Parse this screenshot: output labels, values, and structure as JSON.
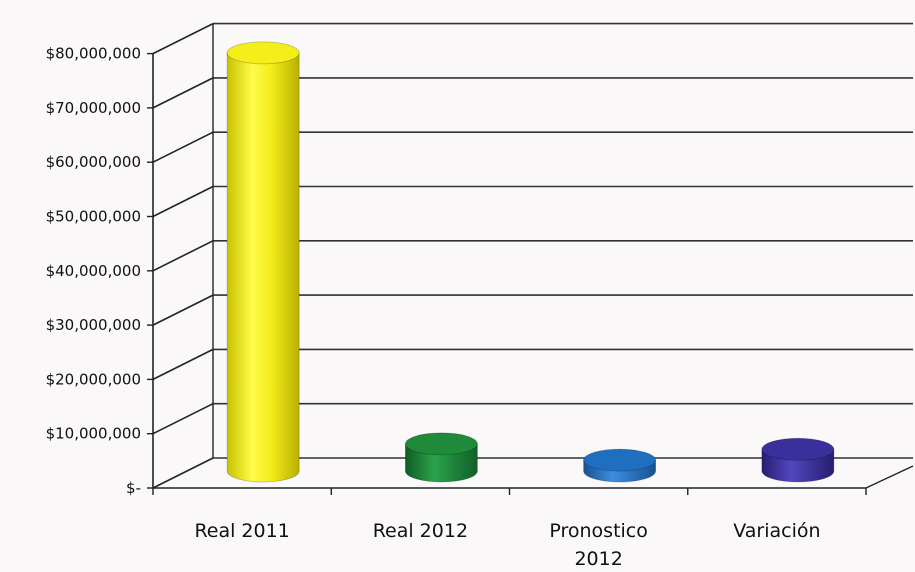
{
  "chart_data": {
    "type": "bar",
    "style": "3d-cylinder",
    "categories": [
      {
        "lines": [
          "Real 2011"
        ]
      },
      {
        "lines": [
          "Real 2012"
        ]
      },
      {
        "lines": [
          "Pronostico",
          "2012"
        ]
      },
      {
        "lines": [
          "Variación"
        ]
      }
    ],
    "values": [
      77000000,
      5000000,
      2000000,
      4000000
    ],
    "colors": [
      "#f4ee1a",
      "#1e8a3a",
      "#1f6fc0",
      "#3b2f9b"
    ],
    "yticks": [
      {
        "value": 0,
        "label": "$-"
      },
      {
        "value": 10000000,
        "label": "$10,000,000"
      },
      {
        "value": 20000000,
        "label": "$20,000,000"
      },
      {
        "value": 30000000,
        "label": "$30,000,000"
      },
      {
        "value": 40000000,
        "label": "$40,000,000"
      },
      {
        "value": 50000000,
        "label": "$50,000,000"
      },
      {
        "value": 60000000,
        "label": "$60,000,000"
      },
      {
        "value": 70000000,
        "label": "$70,000,000"
      },
      {
        "value": 80000000,
        "label": "$80,000,000"
      }
    ],
    "ylim": [
      0,
      80000000
    ],
    "title": "",
    "xlabel": "",
    "ylabel": "",
    "grid": true,
    "legend": "none"
  }
}
